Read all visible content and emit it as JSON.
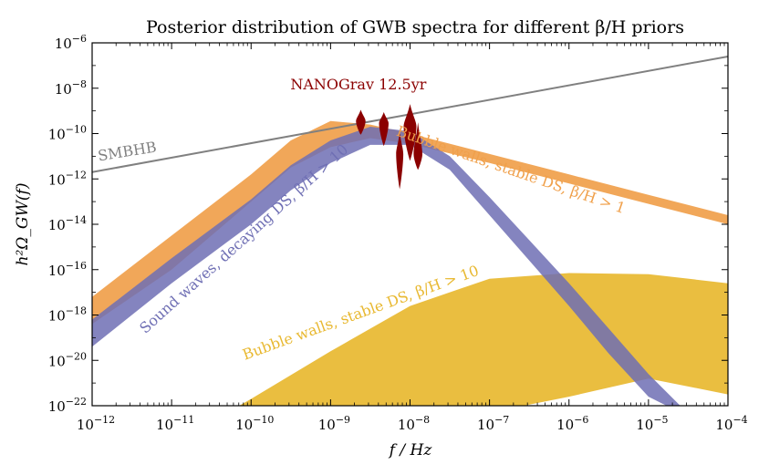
{
  "chart_data": {
    "type": "area",
    "title": "Posterior distribution of GWB spectra for different β/H priors",
    "xlabel": "f / Hz",
    "ylabel": "h²Ω_GW(f)",
    "xscale": "log",
    "yscale": "log",
    "xlim": [
      1e-12,
      0.0001
    ],
    "ylim": [
      1e-22,
      1e-06
    ],
    "x_ticks": [
      {
        "value": -12,
        "label": "10^-12"
      },
      {
        "value": -11,
        "label": "10^-11"
      },
      {
        "value": -10,
        "label": "10^-10"
      },
      {
        "value": -9,
        "label": "10^-9"
      },
      {
        "value": -8,
        "label": "10^-8"
      },
      {
        "value": -7,
        "label": "10^-7"
      },
      {
        "value": -6,
        "label": "10^-6"
      },
      {
        "value": -5,
        "label": "10^-5"
      },
      {
        "value": -4,
        "label": "10^-4"
      }
    ],
    "y_ticks": [
      {
        "value": -22,
        "label": "10^-22"
      },
      {
        "value": -20,
        "label": "10^-20"
      },
      {
        "value": -18,
        "label": "10^-18"
      },
      {
        "value": -16,
        "label": "10^-16"
      },
      {
        "value": -14,
        "label": "10^-14"
      },
      {
        "value": -12,
        "label": "10^-12"
      },
      {
        "value": -10,
        "label": "10^-10"
      },
      {
        "value": -8,
        "label": "10^-8"
      },
      {
        "value": -6,
        "label": "10^-6"
      }
    ],
    "series": [
      {
        "name": "Bubble walls, stable DS, β/H > 10",
        "kind": "band",
        "color": "#E8B830",
        "log10_f": [
          -10.3,
          -10,
          -9,
          -8,
          -7,
          -6,
          -5,
          -4
        ],
        "log10_upper": [
          -22.3,
          -21.7,
          -19.6,
          -17.6,
          -16.4,
          -16.15,
          -16.2,
          -16.6
        ],
        "log10_lower": [
          -22.3,
          -22.3,
          -22.3,
          -22.3,
          -22.3,
          -21.6,
          -20.8,
          -21.5
        ]
      },
      {
        "name": "Bubble walls, stable DS, β/H > 1",
        "kind": "band",
        "color": "#F0A04B",
        "log10_f": [
          -12,
          -11,
          -10,
          -9.5,
          -9,
          -8.5,
          -8,
          -7,
          -6,
          -5,
          -4
        ],
        "log10_upper": [
          -17.2,
          -14.5,
          -11.8,
          -10.3,
          -9.45,
          -9.6,
          -10.0,
          -10.9,
          -11.8,
          -12.7,
          -13.6
        ],
        "log10_lower": [
          -18.4,
          -16.0,
          -13.0,
          -11.5,
          -10.6,
          -10.2,
          -10.45,
          -11.3,
          -12.2,
          -13.1,
          -14.0
        ]
      },
      {
        "name": "Sound waves, decaying DS, β/H > 10",
        "kind": "band",
        "color": "#6F6FB4",
        "log10_f": [
          -12,
          -11,
          -10,
          -9.5,
          -9,
          -8.5,
          -8,
          -7.5,
          -7,
          -6.5,
          -6,
          -5.5,
          -5,
          -4.6
        ],
        "log10_upper": [
          -18.2,
          -15.5,
          -12.9,
          -11.4,
          -10.3,
          -9.7,
          -9.9,
          -11.0,
          -12.8,
          -14.7,
          -16.6,
          -18.6,
          -20.6,
          -22.0
        ],
        "log10_lower": [
          -19.4,
          -16.6,
          -14.0,
          -12.5,
          -11.3,
          -10.5,
          -10.5,
          -11.6,
          -13.6,
          -15.6,
          -17.6,
          -19.7,
          -21.6,
          -22.3
        ]
      },
      {
        "name": "SMBHB",
        "kind": "line",
        "color": "#808080",
        "log10_f": [
          -12,
          -4
        ],
        "log10_y": [
          -11.7,
          -6.6
        ]
      },
      {
        "name": "NANOGrav 12.5yr",
        "kind": "violins",
        "color": "#8B0000",
        "points": [
          {
            "log10_f": -8.62,
            "center": -9.45,
            "top": -8.95,
            "bottom": -10.05,
            "hw": 0.06
          },
          {
            "log10_f": -8.33,
            "center": -9.55,
            "top": -9.05,
            "bottom": -10.55,
            "hw": 0.06
          },
          {
            "log10_f": -8.13,
            "center": -10.9,
            "top": -9.95,
            "bottom": -12.45,
            "hw": 0.045
          },
          {
            "log10_f": -8.0,
            "center": -9.7,
            "top": -8.7,
            "bottom": -11.2,
            "hw": 0.08
          },
          {
            "log10_f": -7.9,
            "center": -10.9,
            "top": -9.5,
            "bottom": -11.6,
            "hw": 0.055
          }
        ]
      }
    ],
    "annotations": [
      {
        "text": "NANOGrav 12.5yr",
        "color": "#8B0000",
        "log10_f": -8.65,
        "log10_y": -8.05,
        "rotate": 0
      },
      {
        "text": "SMBHB",
        "color": "#808080",
        "log10_f": -11.55,
        "log10_y": -11.0,
        "rotate": -9
      },
      {
        "text": "Bubble walls, stable DS, β/H > 1",
        "color": "#F0A04B",
        "log10_f": -6.75,
        "log10_y": -11.8,
        "rotate": 19
      },
      {
        "text": "Sound waves, decaying DS, β/H > 10",
        "color": "#6F6FB4",
        "log10_f": -10.05,
        "log10_y": -14.8,
        "rotate": -42
      },
      {
        "text": "Bubble walls, stable DS, β/H > 10",
        "color": "#E8B830",
        "log10_f": -8.6,
        "log10_y": -18.1,
        "rotate": -20
      }
    ]
  }
}
